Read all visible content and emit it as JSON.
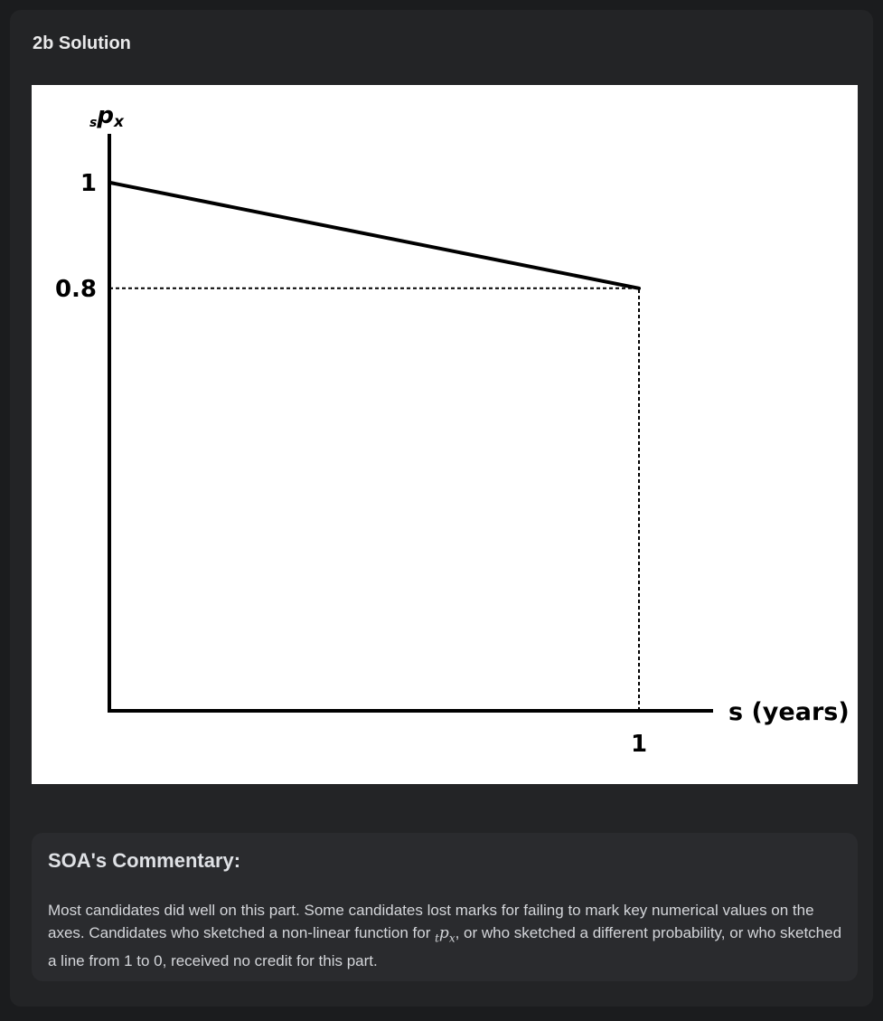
{
  "section": {
    "title": "2b Solution"
  },
  "chart_data": {
    "type": "line",
    "ylabel_main": "p",
    "ylabel_pre_sub": "s",
    "ylabel_post_sub": "x",
    "xlabel": "s (years)",
    "y_tick_labels": [
      "1",
      "0.8"
    ],
    "x_tick_labels": [
      "1"
    ],
    "x": [
      0,
      1
    ],
    "y": [
      1,
      0.8
    ],
    "xlim": [
      0,
      1.35
    ],
    "ylim": [
      0,
      1.13
    ],
    "reference_lines": [
      {
        "style": "dashed",
        "from": [
          0,
          0.8
        ],
        "to": [
          1,
          0.8
        ]
      },
      {
        "style": "dashed",
        "from": [
          1,
          0
        ],
        "to": [
          1,
          0.8
        ]
      }
    ],
    "colors": {
      "line": "#000000",
      "background": "#ffffff"
    }
  },
  "commentary": {
    "title": "SOA's Commentary:",
    "text_before": "Most candidates did well on this part. Some candidates lost marks for failing to mark key numerical values on the axes. Candidates who sketched a non-linear function for ",
    "math_main": "p",
    "math_pre_sub": "t",
    "math_post_sub": "x",
    "text_after": ", or who sketched a different probability, or who sketched a line from 1 to 0, received no credit for this part."
  }
}
